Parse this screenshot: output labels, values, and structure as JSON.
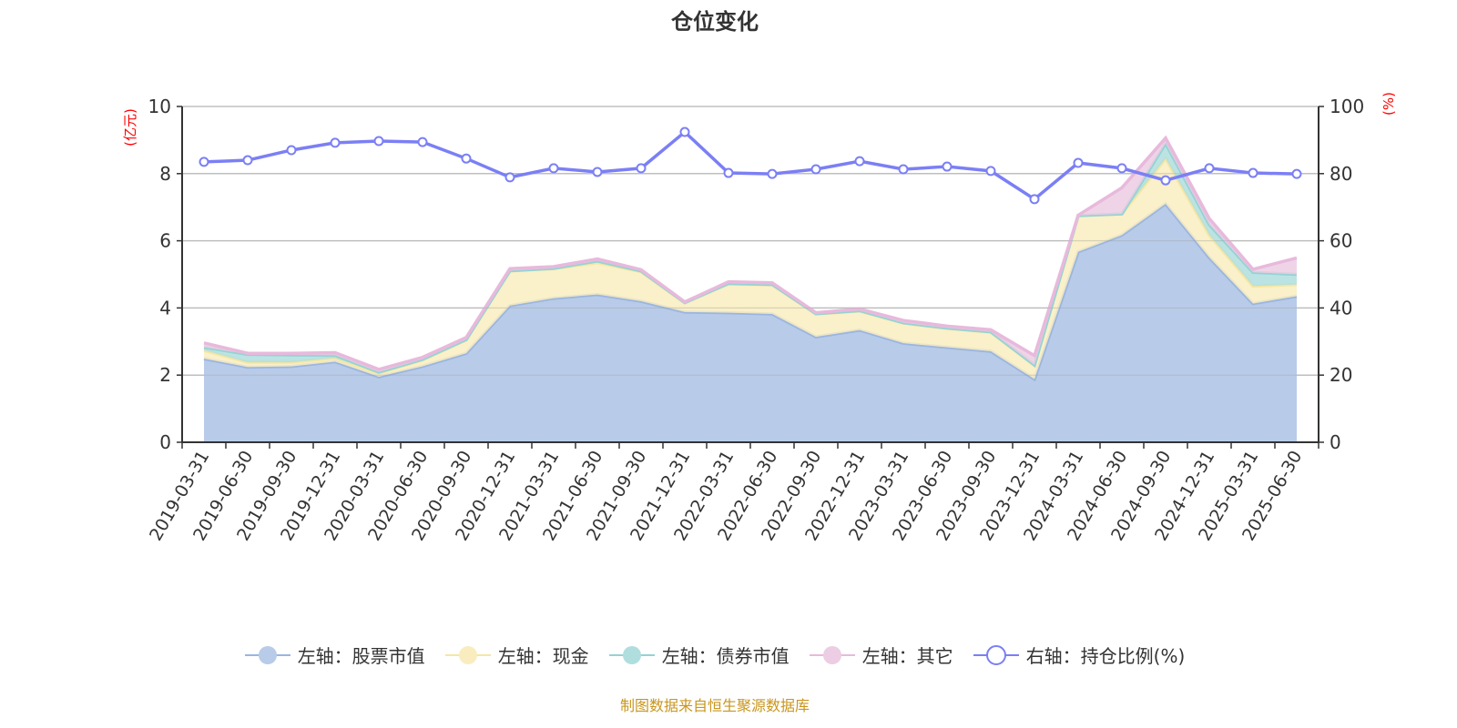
{
  "title": "仓位变化",
  "source": "制图数据来自恒生聚源数据库",
  "chart_data": {
    "type": "area",
    "title": "仓位变化",
    "stacked": true,
    "categories": [
      "2019-03-31",
      "2019-06-30",
      "2019-09-30",
      "2019-12-31",
      "2020-03-31",
      "2020-06-30",
      "2020-09-30",
      "2020-12-31",
      "2021-03-31",
      "2021-06-30",
      "2021-09-30",
      "2021-12-31",
      "2022-03-31",
      "2022-06-30",
      "2022-09-30",
      "2022-12-31",
      "2023-03-31",
      "2023-06-30",
      "2023-09-30",
      "2023-12-31",
      "2024-03-31",
      "2024-06-30",
      "2024-09-30",
      "2024-12-31",
      "2025-03-31",
      "2025-06-30"
    ],
    "left_axis": {
      "label": "(亿元)",
      "ylim": [
        0,
        10
      ],
      "ticks": [
        0,
        2,
        4,
        6,
        8,
        10
      ],
      "label_color": "#ff0000"
    },
    "right_axis": {
      "label": "(%)",
      "ylim": [
        0,
        100
      ],
      "ticks": [
        0,
        20,
        40,
        60,
        80,
        100
      ],
      "label_color": "#ff0000"
    },
    "grid": true,
    "legend_position": "bottom",
    "series": [
      {
        "name": "左轴：股票市值",
        "axis": "left",
        "color": "#9ab5e0",
        "fill": "#b8cbe8",
        "values": [
          2.49,
          2.24,
          2.26,
          2.4,
          1.95,
          2.26,
          2.65,
          4.07,
          4.29,
          4.4,
          4.2,
          3.88,
          3.86,
          3.82,
          3.14,
          3.34,
          2.95,
          2.83,
          2.71,
          1.88,
          5.67,
          6.17,
          7.1,
          5.5,
          4.13,
          4.35
        ]
      },
      {
        "name": "左轴：现金",
        "axis": "left",
        "color": "#f5e6a3",
        "fill": "#f9edc0",
        "values": [
          0.25,
          0.14,
          0.12,
          0.11,
          0.11,
          0.19,
          0.4,
          1.03,
          0.88,
          0.95,
          0.88,
          0.27,
          0.86,
          0.87,
          0.68,
          0.57,
          0.6,
          0.56,
          0.57,
          0.41,
          1.08,
          0.63,
          1.35,
          0.67,
          0.52,
          0.35
        ]
      },
      {
        "name": "左轴：债券市值",
        "axis": "left",
        "color": "#94d3d3",
        "fill": "#b0dede",
        "values": [
          0.09,
          0.24,
          0.22,
          0.08,
          0.03,
          0.02,
          0.01,
          0.01,
          0.01,
          0.05,
          0.02,
          0.01,
          0.01,
          0.01,
          0.01,
          0.01,
          0.01,
          0.01,
          0.01,
          0.01,
          0.0,
          0.0,
          0.45,
          0.31,
          0.41,
          0.3
        ]
      },
      {
        "name": "左轴：其它",
        "axis": "left",
        "color": "#e8b9dc",
        "fill": "#eccde3",
        "values": [
          0.13,
          0.03,
          0.05,
          0.08,
          0.08,
          0.06,
          0.06,
          0.06,
          0.05,
          0.06,
          0.04,
          0.02,
          0.05,
          0.05,
          0.03,
          0.05,
          0.07,
          0.06,
          0.06,
          0.28,
          0.01,
          0.78,
          0.16,
          0.18,
          0.09,
          0.49
        ]
      },
      {
        "name": "右轴：持仓比例(%)",
        "axis": "right",
        "color": "#7b7ff5",
        "values": [
          83.5,
          84.0,
          87.0,
          89.2,
          89.7,
          89.4,
          84.5,
          78.9,
          81.6,
          80.5,
          81.6,
          92.4,
          80.2,
          79.9,
          81.3,
          83.7,
          81.3,
          82.1,
          80.8,
          72.4,
          83.2,
          81.6,
          78.0,
          81.6,
          80.2,
          79.9
        ]
      }
    ]
  }
}
